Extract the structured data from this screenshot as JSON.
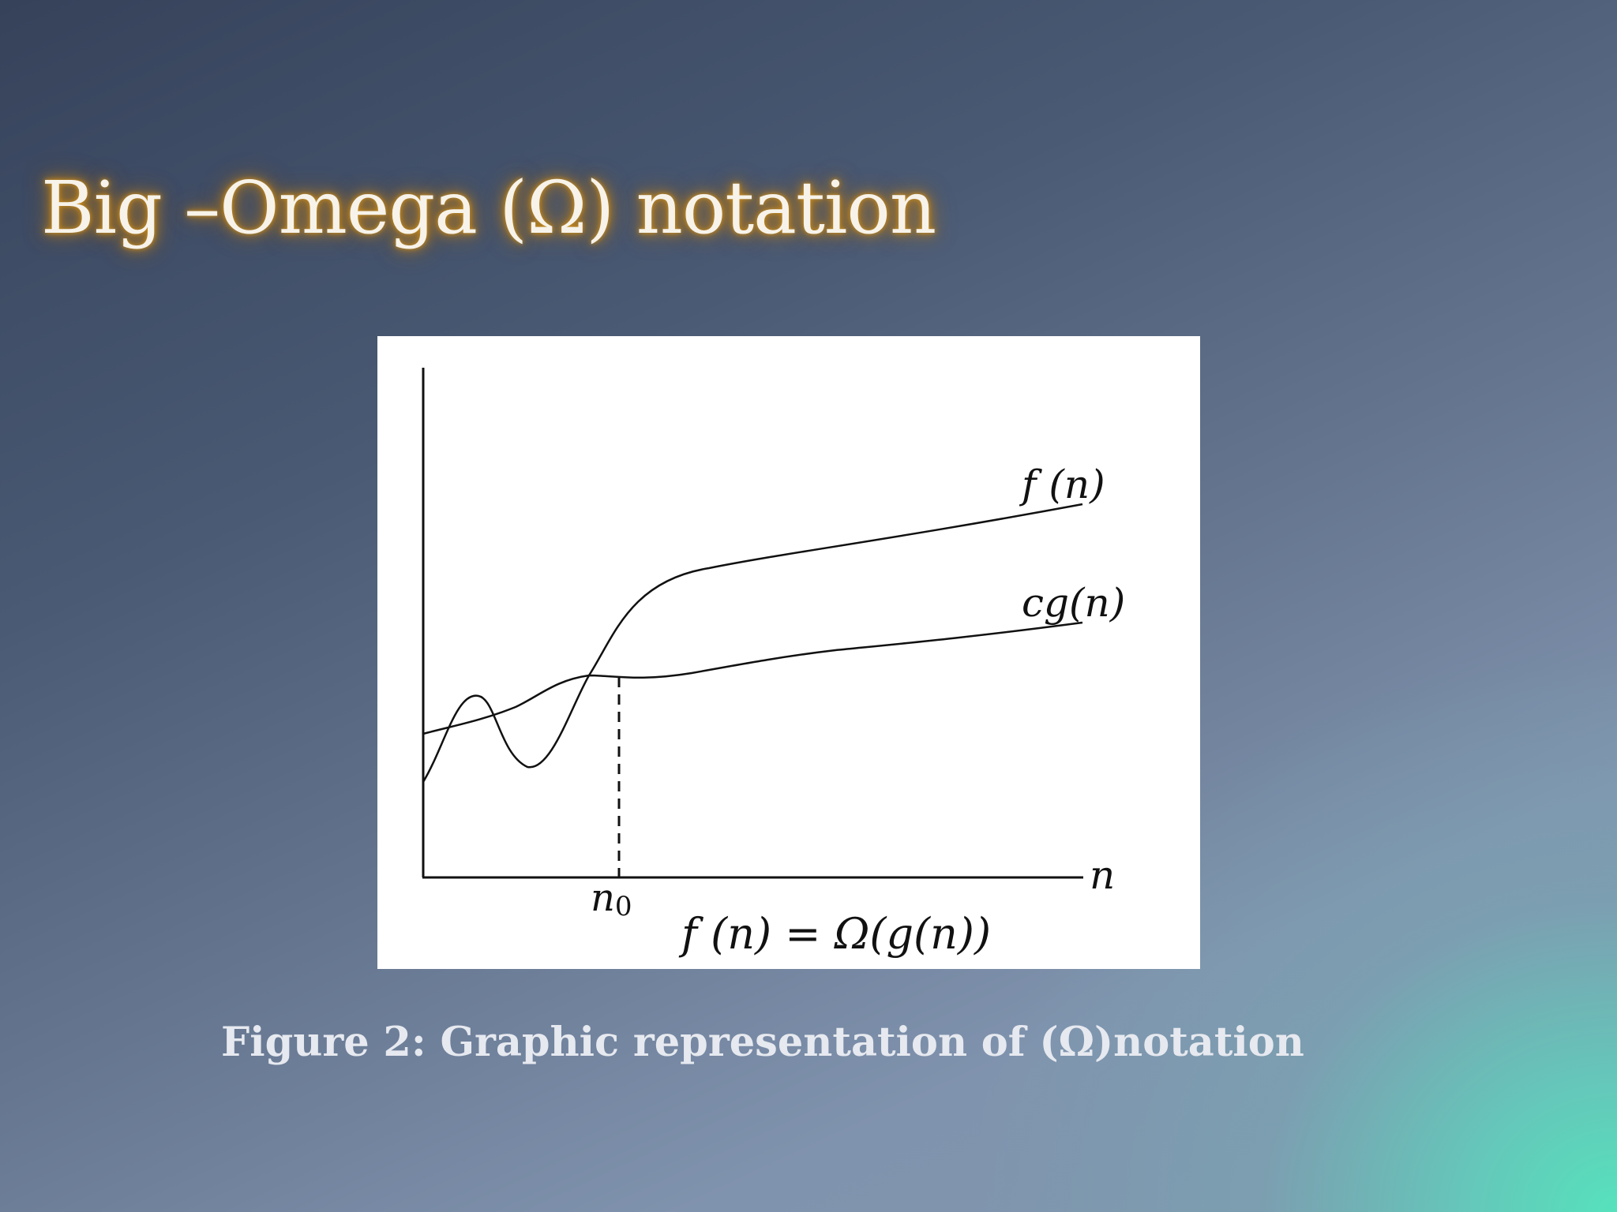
{
  "slide": {
    "title": "Big –Omega (Ω) notation",
    "caption": "Figure 2: Graphic representation of (Ω)notation"
  },
  "diagram": {
    "curves": [
      {
        "id": "f",
        "label": "f (n)"
      },
      {
        "id": "cg",
        "label": "cg(n)"
      }
    ],
    "x_axis_label": "n",
    "threshold_label": "n",
    "threshold_subscript": "0",
    "equation": "f (n) = Ω(g(n))"
  },
  "colors": {
    "title_glow": "#c8841a",
    "title_text": "#f7f3ea",
    "caption_text": "#e6e9ef",
    "figure_bg": "#ffffff",
    "ink": "#111111"
  }
}
